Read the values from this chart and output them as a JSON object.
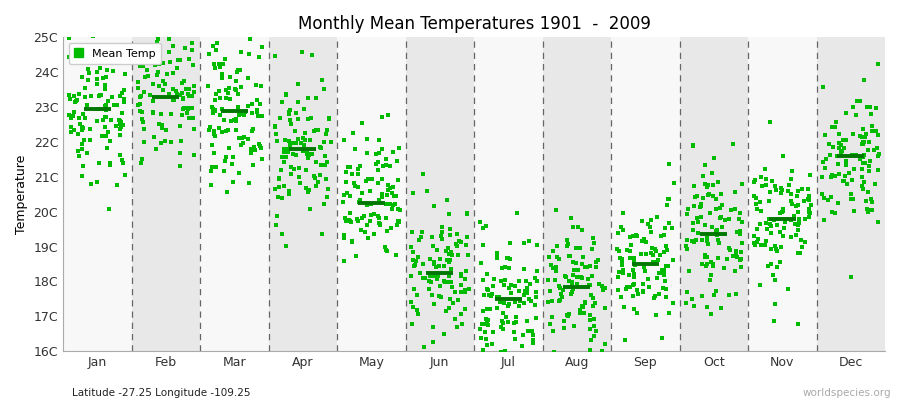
{
  "title": "Monthly Mean Temperatures 1901  -  2009",
  "ylabel": "Temperature",
  "xlabel_bottom": "Latitude -27.25 Longitude -109.25",
  "watermark": "worldspecies.org",
  "months": [
    "Jan",
    "Feb",
    "Mar",
    "Apr",
    "May",
    "Jun",
    "Jul",
    "Aug",
    "Sep",
    "Oct",
    "Nov",
    "Dec"
  ],
  "mean_temps": [
    22.95,
    23.3,
    22.88,
    21.8,
    20.25,
    18.25,
    17.5,
    17.85,
    18.5,
    19.35,
    19.8,
    21.6
  ],
  "temp_spread": [
    1.1,
    1.0,
    1.0,
    1.05,
    1.0,
    0.95,
    0.95,
    0.95,
    0.9,
    0.95,
    1.0,
    1.0
  ],
  "ylim_min": 16,
  "ylim_max": 25,
  "yticks": [
    16,
    17,
    18,
    19,
    20,
    21,
    22,
    23,
    24,
    25
  ],
  "ytick_labels": [
    "16C",
    "17C",
    "18C",
    "19C",
    "20C",
    "21C",
    "22C",
    "23C",
    "24C",
    "25C"
  ],
  "dot_color": "#00bb00",
  "mean_line_color": "#007700",
  "bg_color_odd": "#e8e8e8",
  "bg_color_even": "#f8f8f8",
  "n_years": 109,
  "random_seed": 42,
  "figwidth": 9.0,
  "figheight": 4.0,
  "dpi": 100
}
